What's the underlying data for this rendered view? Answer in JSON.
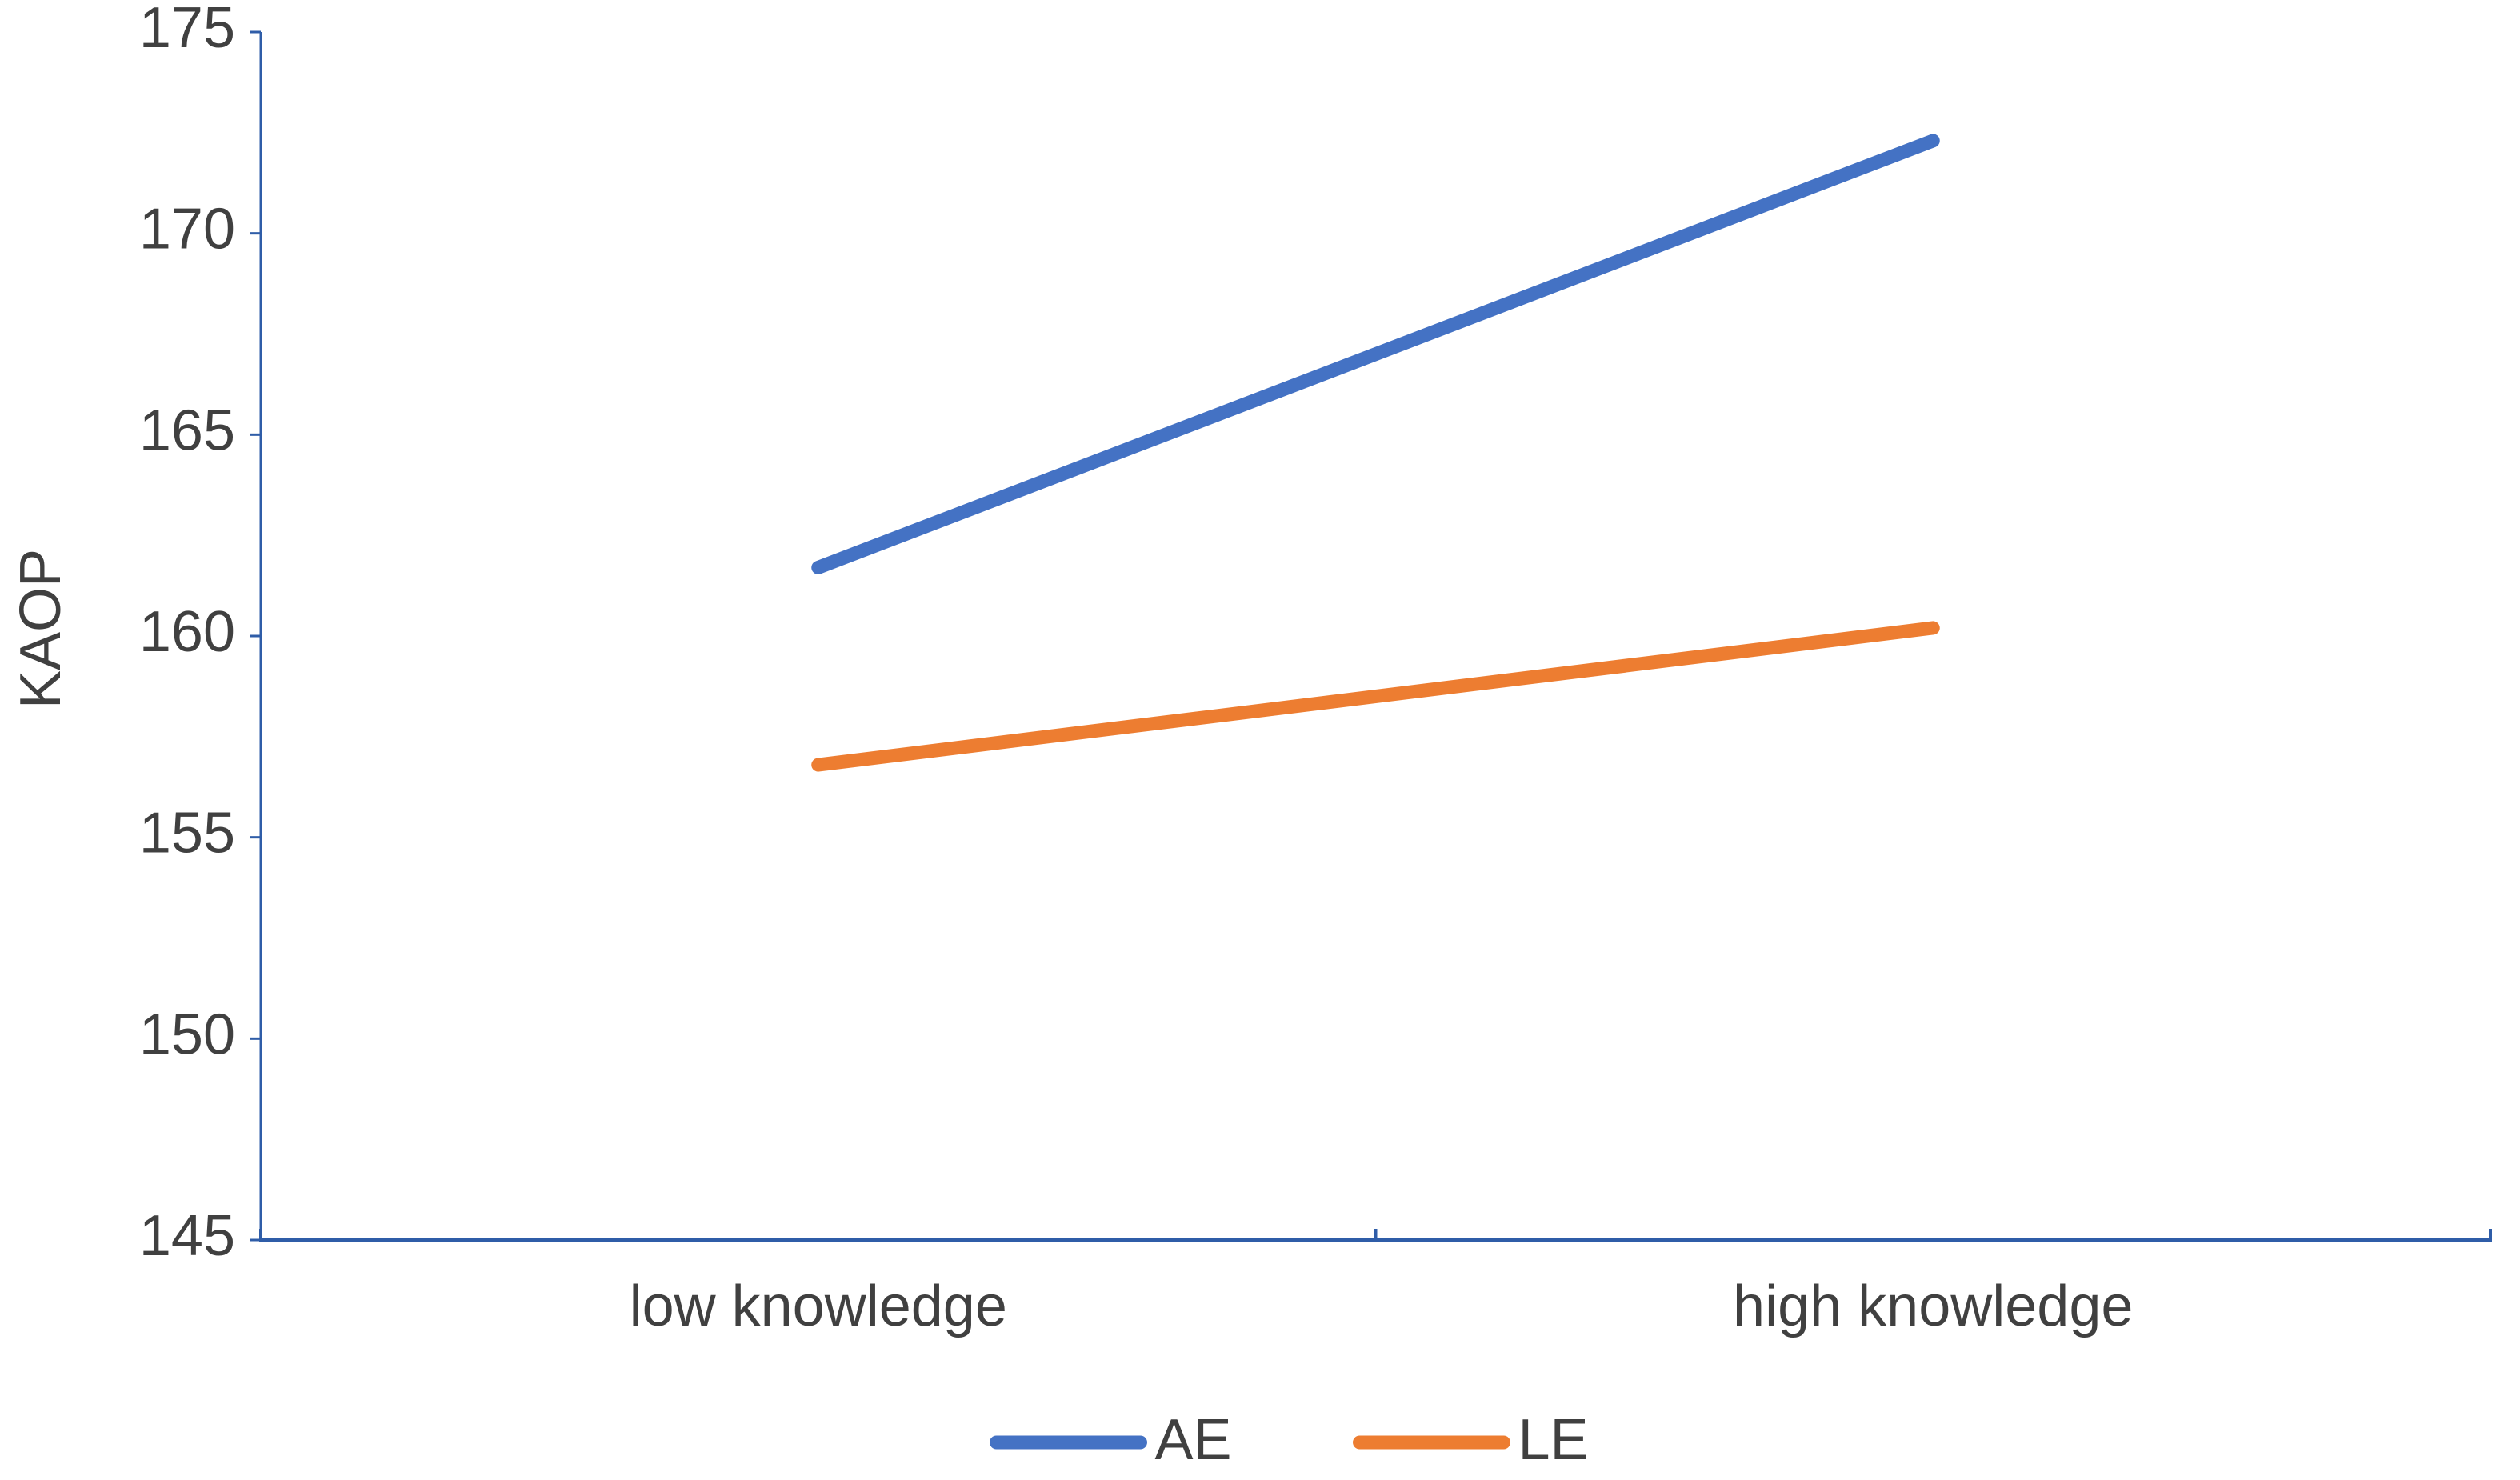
{
  "chart_data": {
    "type": "line",
    "y_label": "KAOP",
    "categories": [
      "low knowledge",
      "high knowledge"
    ],
    "series": [
      {
        "name": "AE",
        "color": "#4472c4",
        "values": [
          161.7,
          172.3
        ]
      },
      {
        "name": "LE",
        "color": "#ed7d31",
        "values": [
          156.8,
          160.2
        ]
      }
    ],
    "ylim": [
      145,
      175
    ],
    "yticks": [
      145,
      150,
      155,
      160,
      165,
      170,
      175
    ],
    "grid": false,
    "legend": "bottom"
  }
}
